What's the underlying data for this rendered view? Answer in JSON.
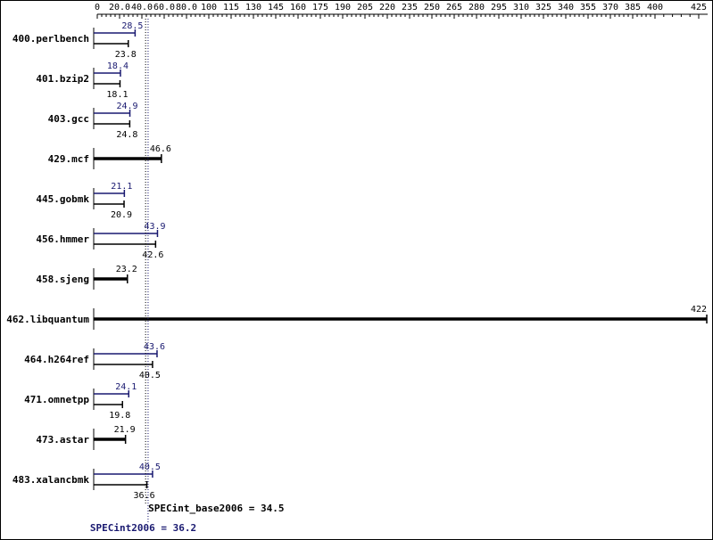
{
  "chart_data": {
    "type": "bar",
    "orientation": "horizontal",
    "x_ticks": [
      "0",
      "20.0",
      "40.0",
      "60.0",
      "80.0",
      "100",
      "115",
      "130",
      "145",
      "160",
      "175",
      "190",
      "205",
      "220",
      "235",
      "250",
      "265",
      "280",
      "295",
      "310",
      "325",
      "340",
      "355",
      "370",
      "385",
      "400",
      "425"
    ],
    "x_tick_values": [
      0,
      20,
      40,
      60,
      80,
      100,
      115,
      130,
      145,
      160,
      175,
      190,
      205,
      220,
      235,
      250,
      265,
      280,
      295,
      310,
      325,
      340,
      355,
      370,
      385,
      400,
      425
    ],
    "categories": [
      "400.perlbench",
      "401.bzip2",
      "403.gcc",
      "429.mcf",
      "445.gobmk",
      "456.hmmer",
      "458.sjeng",
      "462.libquantum",
      "464.h264ref",
      "471.omnetpp",
      "473.astar",
      "483.xalancbmk"
    ],
    "series": [
      {
        "values": [
          28.5,
          18.4,
          24.9,
          null,
          21.1,
          43.9,
          null,
          null,
          43.6,
          24.1,
          null,
          40.5
        ]
      },
      {
        "values": [
          23.8,
          18.1,
          24.8,
          46.6,
          20.9,
          42.6,
          23.2,
          422,
          40.5,
          19.8,
          21.9,
          36.6
        ]
      }
    ],
    "value_labels": {
      "peak": [
        "28.5",
        "18.4",
        "24.9",
        "",
        "21.1",
        "43.9",
        "",
        "",
        "43.6",
        "24.1",
        "",
        "40.5"
      ],
      "base": [
        "23.8",
        "18.1",
        "24.8",
        "46.6",
        "20.9",
        "42.6",
        "23.2",
        "422",
        "40.5",
        "19.8",
        "21.9",
        "36.6"
      ]
    },
    "reference_lines": {
      "base_label": "SPECint_base2006 = 34.5",
      "peak_label": "SPECint2006 = 36.2",
      "base_value": 34.5,
      "peak_value": 36.2
    },
    "colors": {
      "peak": "#191970",
      "base": "#000000"
    }
  }
}
